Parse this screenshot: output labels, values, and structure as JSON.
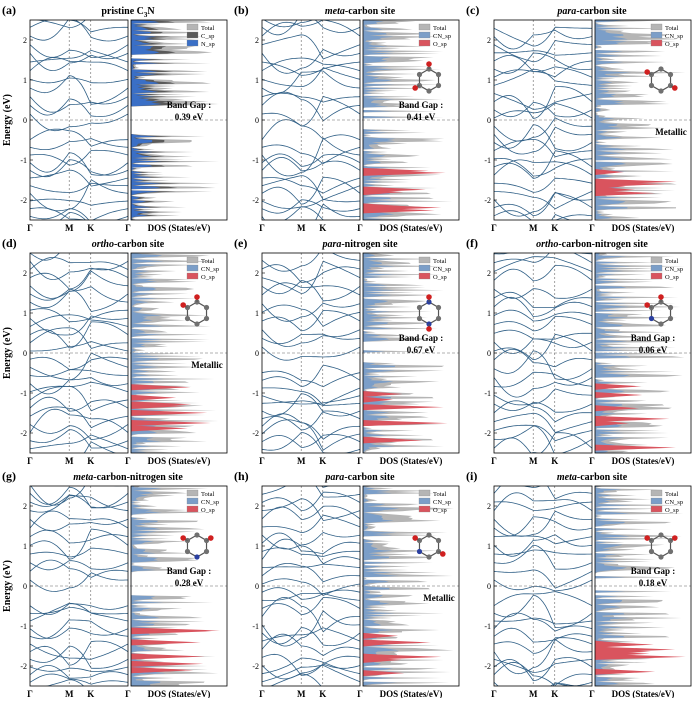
{
  "figure": {
    "axis_label": "Energy (eV)",
    "kpath": [
      "Γ",
      "M",
      "K",
      "Γ"
    ],
    "dos_xlabel": "DOS (States/eV)",
    "colors": {
      "band": "#2f5f86",
      "total": "#b5b5b5",
      "total_dark": "#5a5a5a",
      "n_sp": "#3a6fc6",
      "cn_sp": "#7b9ec8",
      "o_sp": "#d9545e",
      "frame": "#000000",
      "dash": "#666666"
    }
  },
  "panels": [
    {
      "letter": "(a)",
      "title_prefix": "",
      "title_emph": "",
      "title_rest": "pristine C",
      "title_sub": "3",
      "title_tail": "N",
      "legend": [
        "Total",
        "C_sp",
        "N_sp"
      ],
      "gap_label": "Band Gap :",
      "gap_value": "0.39 eV",
      "yticks": [
        "-2",
        "-1",
        "0",
        "1",
        "2"
      ],
      "ylim": [
        -2.5,
        2.5
      ],
      "molecule": "none",
      "metallic": false
    },
    {
      "letter": "(b)",
      "title_emph": "meta",
      "title_rest": "-carbon site",
      "legend": [
        "Total",
        "CN_sp",
        "O_sp"
      ],
      "gap_label": "Band Gap :",
      "gap_value": "0.41 eV",
      "yticks": [
        "-2",
        "-1",
        "0",
        "1",
        "2"
      ],
      "ylim": [
        -2.5,
        2.5
      ],
      "molecule": "meta",
      "metallic": false
    },
    {
      "letter": "(c)",
      "title_emph": "para",
      "title_rest": "-carbon site",
      "legend": [
        "Total",
        "CN_sp",
        "O_sp"
      ],
      "gap_label": "Metallic",
      "gap_value": "",
      "yticks": [
        "-2",
        "-1",
        "0",
        "1",
        "2"
      ],
      "ylim": [
        -2.5,
        2.5
      ],
      "molecule": "para",
      "metallic": true
    },
    {
      "letter": "(d)",
      "title_emph": "ortho",
      "title_rest": "-carbon site",
      "legend": [
        "Total",
        "CN_sp",
        "O_sp"
      ],
      "gap_label": "Metallic",
      "gap_value": "",
      "yticks": [
        "-2",
        "-1",
        "0",
        "1",
        "2"
      ],
      "ylim": [
        -2.5,
        2.5
      ],
      "molecule": "ortho",
      "metallic": true
    },
    {
      "letter": "(e)",
      "title_emph": "para",
      "title_rest": "-nitrogen site",
      "legend": [
        "Total",
        "CN_sp",
        "O_sp"
      ],
      "gap_label": "Band Gap :",
      "gap_value": "0.67 eV",
      "yticks": [
        "-2",
        "-1",
        "0",
        "1",
        "2"
      ],
      "ylim": [
        -2.5,
        2.5
      ],
      "molecule": "paraN",
      "metallic": false
    },
    {
      "letter": "(f)",
      "title_emph": "ortho",
      "title_rest": "-carbon-nitrogen site",
      "legend": [
        "Total",
        "CN_sp",
        "O_sp"
      ],
      "gap_label": "Band Gap :",
      "gap_value": "0.06 eV",
      "yticks": [
        "-2",
        "-1",
        "0",
        "1",
        "2"
      ],
      "ylim": [
        -2.5,
        2.5
      ],
      "molecule": "orthoCN",
      "metallic": false
    },
    {
      "letter": "(g)",
      "title_emph": "meta",
      "title_rest": "-carbon-nitrogen site",
      "legend": [
        "Total",
        "CN_sp",
        "O_sp"
      ],
      "gap_label": "Band Gap :",
      "gap_value": "0.28 eV",
      "yticks": [
        "-2",
        "-1",
        "0",
        "1",
        "2"
      ],
      "ylim": [
        -2.5,
        2.5
      ],
      "molecule": "metaCN",
      "metallic": false
    },
    {
      "letter": "(h)",
      "title_emph": "para",
      "title_rest": "-carbon site",
      "legend": [
        "Total",
        "CN_sp",
        "O_sp"
      ],
      "gap_label": "Metallic",
      "gap_value": "",
      "yticks": [
        "-2",
        "-1",
        "0",
        "1",
        "2"
      ],
      "ylim": [
        -2.5,
        2.5
      ],
      "molecule": "paraC2",
      "metallic": true
    },
    {
      "letter": "(i)",
      "title_emph": "meta",
      "title_rest": "-carbon site",
      "legend": [
        "Total",
        "CN_sp",
        "O_sp"
      ],
      "gap_label": "Band Gap :",
      "gap_value": "0.18 eV",
      "yticks": [
        "-2",
        "-1",
        "0",
        "1",
        "2"
      ],
      "ylim": [
        -2.5,
        2.5
      ],
      "molecule": "meta2",
      "metallic": false
    }
  ]
}
